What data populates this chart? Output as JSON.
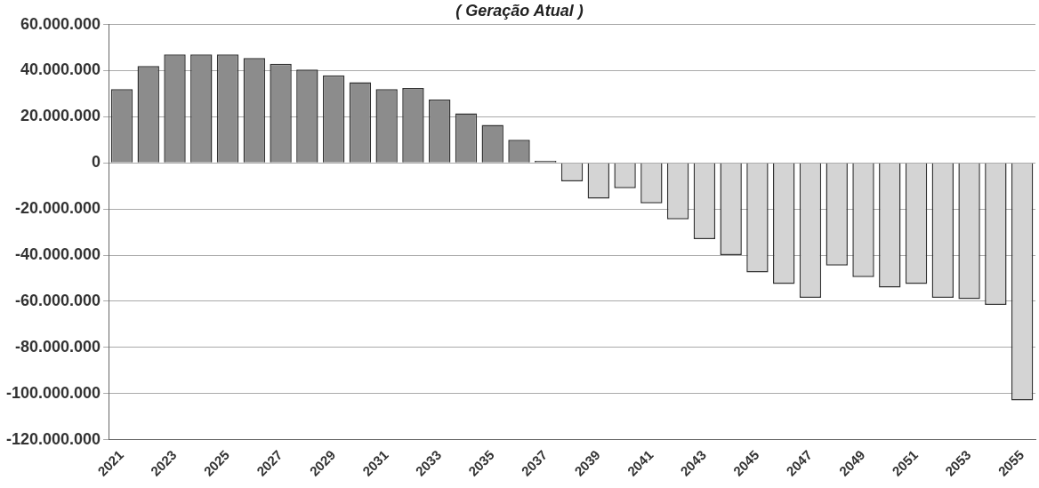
{
  "chart_data": {
    "type": "bar",
    "title": "( Geração Atual )",
    "categories": [
      "2021",
      null,
      "2023",
      null,
      "2025",
      null,
      "2027",
      null,
      "2029",
      null,
      "2031",
      null,
      "2033",
      null,
      "2035",
      null,
      "2037",
      null,
      "2039",
      null,
      "2041",
      null,
      "2043",
      null,
      "2045",
      null,
      "2047",
      null,
      "2049",
      null,
      "2051",
      null,
      "2053",
      null,
      "2055"
    ],
    "values": [
      32000000,
      42000000,
      47000000,
      47000000,
      47000000,
      45500000,
      43000000,
      40500000,
      38000000,
      35000000,
      32000000,
      32500000,
      27500000,
      21500000,
      16500000,
      10000000,
      1000000,
      -8000000,
      -15500000,
      -11000000,
      -17500000,
      -24500000,
      -33000000,
      -40000000,
      -47500000,
      -52500000,
      -58500000,
      -44500000,
      -49500000,
      -54000000,
      -52500000,
      -58500000,
      -59000000,
      -61500000,
      -103000000
    ],
    "colors": [
      "#8c8c8c",
      "#8c8c8c",
      "#8c8c8c",
      "#8c8c8c",
      "#8c8c8c",
      "#8c8c8c",
      "#8c8c8c",
      "#8c8c8c",
      "#8c8c8c",
      "#8c8c8c",
      "#8c8c8c",
      "#8c8c8c",
      "#8c8c8c",
      "#8c8c8c",
      "#8c8c8c",
      "#8c8c8c",
      "#8c8c8c",
      "#d4d4d4",
      "#d4d4d4",
      "#d4d4d4",
      "#d4d4d4",
      "#d4d4d4",
      "#d4d4d4",
      "#d4d4d4",
      "#d4d4d4",
      "#d4d4d4",
      "#d4d4d4",
      "#d4d4d4",
      "#d4d4d4",
      "#d4d4d4",
      "#d4d4d4",
      "#d4d4d4",
      "#d4d4d4",
      "#d4d4d4",
      "#d4d4d4"
    ],
    "ylim": [
      -120000000,
      60000000
    ],
    "yticks": [
      {
        "value": 60000000,
        "label": "60.000.000"
      },
      {
        "value": 40000000,
        "label": "40.000.000"
      },
      {
        "value": 20000000,
        "label": "20.000.000"
      },
      0,
      {
        "value": -20000000,
        "label": "-20.000.000"
      },
      {
        "value": -40000000,
        "label": "-40.000.000"
      },
      {
        "value": -60000000,
        "label": "-60.000.000"
      },
      {
        "value": -80000000,
        "label": "-80.000.000"
      },
      {
        "value": -100000000,
        "label": "-100.000.000"
      },
      {
        "value": -120000000,
        "label": "-120.000.000"
      }
    ],
    "grid": "y",
    "legend": false
  }
}
